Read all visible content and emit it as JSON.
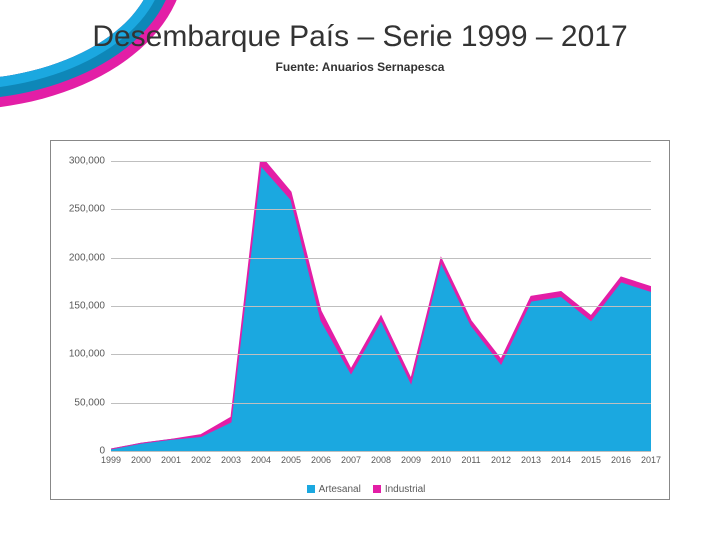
{
  "title": "Desembarque País – Serie 1999 – 2017",
  "subtitle": "Fuente: Anuarios Sernapesca",
  "banner_colors": {
    "band1": "#1ba8e0",
    "band2": "#0e87b8",
    "band3": "#e31ea6"
  },
  "chart": {
    "type": "area",
    "categories": [
      "1999",
      "2000",
      "2001",
      "2002",
      "2003",
      "2004",
      "2005",
      "2006",
      "2007",
      "2008",
      "2009",
      "2010",
      "2011",
      "2012",
      "2013",
      "2014",
      "2015",
      "2016",
      "2017"
    ],
    "series": [
      {
        "name": "Artesanal",
        "color": "#1ba8e0",
        "values": [
          2000,
          8000,
          12000,
          15000,
          30000,
          295000,
          260000,
          135000,
          80000,
          135000,
          70000,
          195000,
          130000,
          90000,
          155000,
          160000,
          135000,
          175000,
          165000
        ]
      },
      {
        "name": "Industrial",
        "color": "#e31ea6",
        "values": [
          0,
          0,
          0,
          2000,
          5000,
          10000,
          8000,
          10000,
          5000,
          5000,
          5000,
          5000,
          5000,
          5000,
          5000,
          5000,
          5000,
          5000,
          5000
        ]
      }
    ],
    "y_axis": {
      "min": 0,
      "max": 300000,
      "step": 50000,
      "labels": [
        "0",
        "50,000",
        "100,000",
        "150,000",
        "200,000",
        "250,000",
        "300,000"
      ]
    },
    "grid_color": "#bfbfbf",
    "label_color": "#595959",
    "label_fontsize": 10,
    "x_fontsize": 9,
    "background": "#ffffff",
    "border_color": "#888888",
    "legend": {
      "items": [
        {
          "label": "Artesanal",
          "color": "#1ba8e0"
        },
        {
          "label": "Industrial",
          "color": "#e31ea6"
        }
      ]
    }
  }
}
